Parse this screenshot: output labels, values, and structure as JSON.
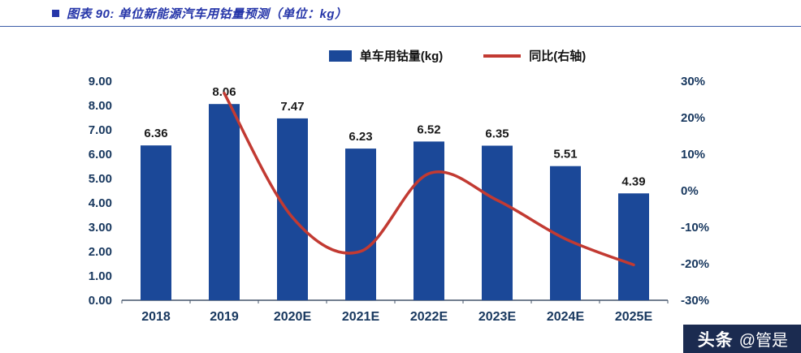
{
  "header": {
    "title": "图表 90:  单位新能源汽车用钴量预测（单位：kg）"
  },
  "watermark": {
    "brand": "头条",
    "handle": "@管是"
  },
  "colors": {
    "title_blue": "#2636a9",
    "bar_blue": "#1b4898",
    "line_red": "#c23a32",
    "axis_navy": "#17375e",
    "watermark_bg": "#1b2b50"
  },
  "chart_data": {
    "type": "bar",
    "title": "单位新能源汽车用钴量预测（单位：kg）",
    "categories": [
      "2018",
      "2019",
      "2020E",
      "2021E",
      "2022E",
      "2023E",
      "2024E",
      "2025E"
    ],
    "series": [
      {
        "name": "单车用钴量(kg)",
        "type": "bar",
        "axis": "left",
        "color": "#1b4898",
        "values": [
          6.36,
          8.06,
          7.47,
          6.23,
          6.52,
          6.35,
          5.51,
          4.39
        ]
      },
      {
        "name": "同比(右轴)",
        "type": "line",
        "axis": "right",
        "color": "#c23a32",
        "values": [
          null,
          26.7,
          -7.3,
          -16.6,
          4.7,
          -2.6,
          -13.2,
          -20.3
        ]
      }
    ],
    "bar_labels": [
      "6.36",
      "8.06",
      "7.47",
      "6.23",
      "6.52",
      "6.35",
      "5.51",
      "4.39"
    ],
    "left_axis": {
      "min": 0,
      "max": 9,
      "step": 1,
      "tick_labels": [
        "0.00",
        "1.00",
        "2.00",
        "3.00",
        "4.00",
        "5.00",
        "6.00",
        "7.00",
        "8.00",
        "9.00"
      ]
    },
    "right_axis": {
      "min": -30,
      "max": 30,
      "step": 10,
      "suffix": "%",
      "tick_labels": [
        "-30%",
        "-20%",
        "-10%",
        "0%",
        "10%",
        "20%",
        "30%"
      ]
    },
    "legend_position": "top",
    "grid": false
  }
}
